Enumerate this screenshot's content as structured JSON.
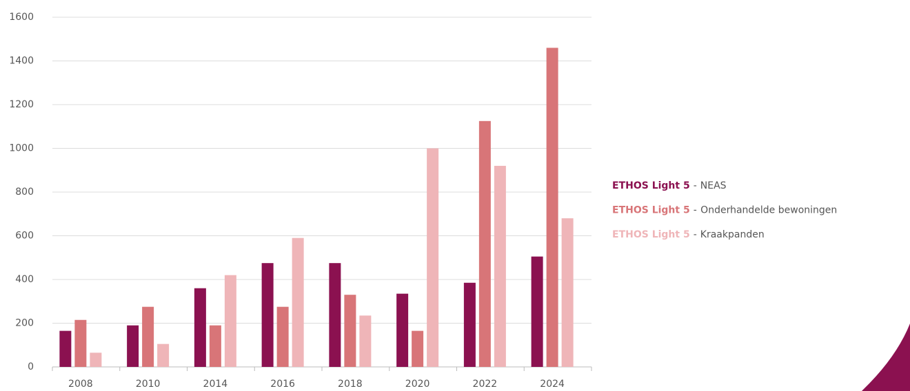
{
  "chart_data": {
    "type": "bar",
    "categories": [
      "2008",
      "2010",
      "2014",
      "2016",
      "2018",
      "2020",
      "2022",
      "2024"
    ],
    "legend_group": "ETHOS Light 5",
    "legend_separator": "-",
    "series": [
      {
        "name": "NEAS",
        "color": "#8b1150",
        "values": [
          165,
          190,
          360,
          475,
          475,
          335,
          385,
          505
        ]
      },
      {
        "name": "Onderhandelde bewoningen",
        "color": "#d87578",
        "values": [
          215,
          275,
          190,
          275,
          330,
          165,
          1125,
          1460
        ]
      },
      {
        "name": "Kraakpanden",
        "color": "#efb5b8",
        "values": [
          65,
          105,
          420,
          590,
          235,
          1000,
          920,
          680
        ]
      }
    ],
    "ylim": [
      0,
      1600
    ],
    "yticks": [
      0,
      200,
      400,
      600,
      800,
      1000,
      1200,
      1400,
      1600
    ],
    "grid": true,
    "legend": "right"
  }
}
